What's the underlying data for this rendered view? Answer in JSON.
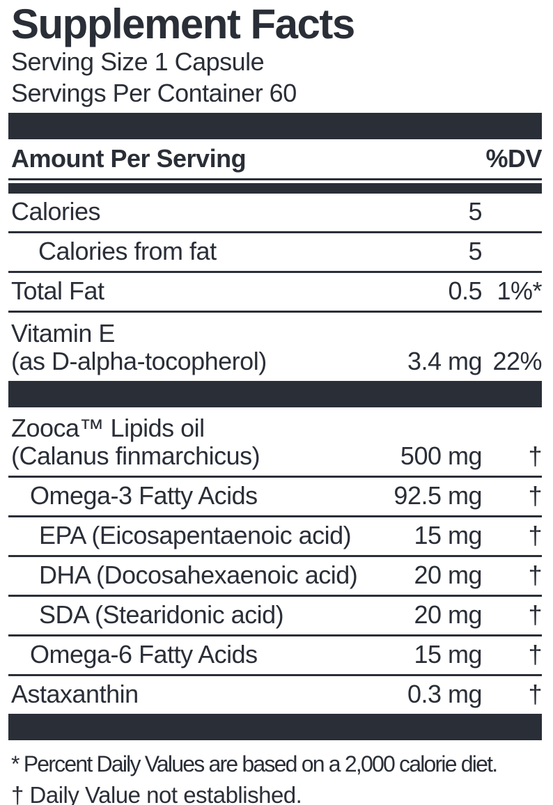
{
  "colors": {
    "ink": "#2a2e37",
    "background": "#ffffff"
  },
  "label": {
    "title": "Supplement Facts",
    "serving_size": "Serving Size 1 Capsule",
    "servings_per_container": "Servings Per Container 60",
    "header": {
      "amount_label": "Amount Per Serving",
      "dv_label": "%DV"
    },
    "rows": [
      {
        "name": "Calories",
        "amount": "5",
        "dv": ""
      },
      {
        "name": "Calories from fat",
        "amount": "5",
        "dv": ""
      },
      {
        "name": "Total Fat",
        "amount": "0.5",
        "dv": "1%*"
      },
      {
        "name": "Vitamin E",
        "name2": "(as D-alpha-tocopherol)",
        "amount": "3.4 mg",
        "dv": "22%"
      },
      {
        "name": "Zooca™ Lipids oil",
        "name2": "(Calanus finmarchicus)",
        "amount": "500 mg",
        "dv": "†"
      },
      {
        "name": "Omega-3 Fatty Acids",
        "amount": "92.5 mg",
        "dv": "†"
      },
      {
        "name": "EPA (Eicosapentaenoic acid)",
        "amount": "15 mg",
        "dv": "†"
      },
      {
        "name": "DHA (Docosahexaenoic acid)",
        "amount": "20 mg",
        "dv": "†"
      },
      {
        "name": "SDA (Stearidonic acid)",
        "amount": "20 mg",
        "dv": "†"
      },
      {
        "name": "Omega-6 Fatty Acids",
        "amount": "15 mg",
        "dv": "†"
      },
      {
        "name": "Astaxanthin",
        "amount": "0.3 mg",
        "dv": "†"
      }
    ],
    "footnotes": [
      "* Percent Daily Values are based on a 2,000 calorie diet.",
      "† Daily Value not established."
    ]
  }
}
